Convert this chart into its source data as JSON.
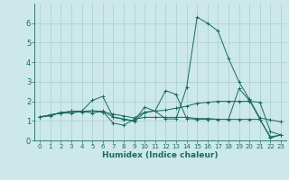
{
  "xlabel": "Humidex (Indice chaleur)",
  "x_values": [
    0,
    1,
    2,
    3,
    4,
    5,
    6,
    7,
    8,
    9,
    10,
    11,
    12,
    13,
    14,
    15,
    16,
    17,
    18,
    19,
    20,
    21,
    22,
    23
  ],
  "series": [
    [
      1.2,
      1.3,
      1.4,
      1.4,
      1.5,
      1.4,
      1.5,
      1.2,
      1.1,
      1.0,
      1.7,
      1.5,
      1.1,
      1.1,
      2.7,
      6.3,
      6.0,
      5.6,
      4.2,
      3.0,
      2.1,
      1.15,
      1.05,
      0.95
    ],
    [
      1.2,
      1.3,
      1.4,
      1.5,
      1.45,
      1.5,
      1.45,
      1.35,
      1.25,
      1.15,
      1.45,
      1.5,
      1.55,
      1.65,
      1.75,
      1.9,
      1.95,
      2.0,
      2.0,
      2.0,
      2.0,
      1.95,
      0.45,
      0.28
    ],
    [
      1.2,
      1.25,
      1.45,
      1.42,
      1.48,
      1.52,
      1.48,
      0.88,
      0.78,
      1.08,
      1.18,
      1.18,
      1.18,
      1.18,
      1.18,
      1.12,
      1.12,
      1.08,
      1.08,
      1.08,
      1.08,
      1.08,
      0.18,
      0.28
    ],
    [
      1.2,
      1.3,
      1.4,
      1.5,
      1.5,
      2.05,
      2.25,
      1.18,
      1.08,
      0.98,
      1.42,
      1.52,
      2.55,
      2.35,
      1.12,
      1.08,
      1.08,
      1.08,
      1.08,
      2.65,
      2.05,
      1.08,
      0.12,
      0.28
    ]
  ],
  "line_color": "#1a6b5a",
  "bg_color": "#cce8e8",
  "grid_color": "#aacece",
  "ylim": [
    0,
    7
  ],
  "xlim": [
    -0.5,
    23.5
  ],
  "yticks": [
    0,
    1,
    2,
    3,
    4,
    5,
    6
  ],
  "xticks": [
    0,
    1,
    2,
    3,
    4,
    5,
    6,
    7,
    8,
    9,
    10,
    11,
    12,
    13,
    14,
    15,
    16,
    17,
    18,
    19,
    20,
    21,
    22,
    23
  ]
}
